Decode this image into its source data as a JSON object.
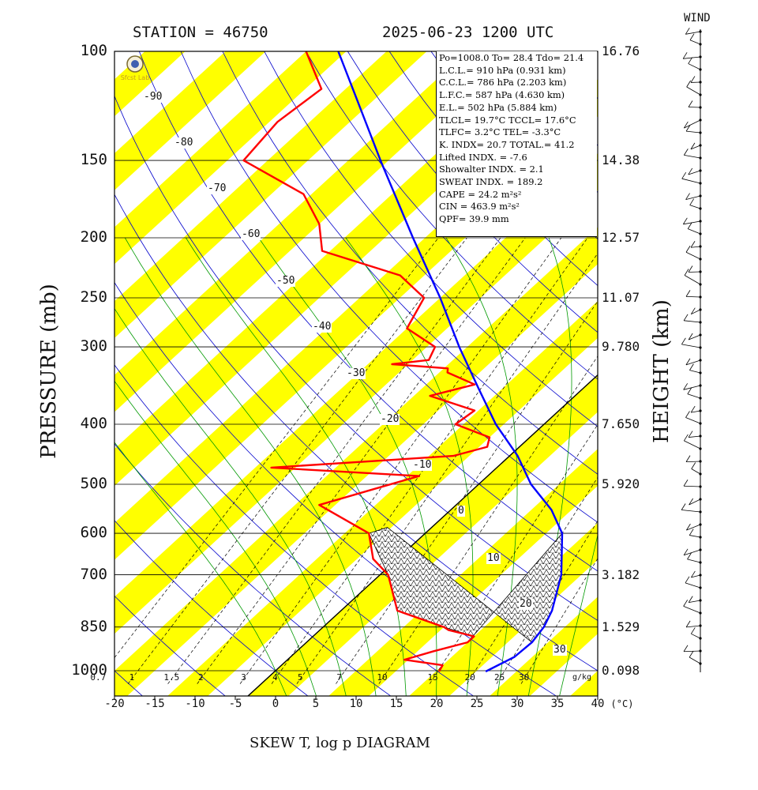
{
  "header": {
    "station": "STATION = 46750",
    "datetime": "2025-06-23 1200 UTC",
    "wind_label": "WIND",
    "footer": "SKEW T, log p DIAGRAM",
    "ylabel": "PRESSURE (mb)",
    "y2label": "HEIGHT (km)",
    "x_unit": "(°C)",
    "mix_unit": "g/kg"
  },
  "info": {
    "lines": [
      "Po=1008.0 To= 28.4 Tdo= 21.4",
      "L.C.L.= 910 hPa (0.931 km)",
      "C.C.L.= 786 hPa (2.203 km)",
      "L.F.C.= 587 hPa (4.630 km)",
      "E.L.= 502 hPa (5.884 km)",
      "TLCL= 19.7°C TCCL= 17.6°C",
      "TLFC= 3.2°C TEL= -3.3°C",
      "K. INDX= 20.7 TOTAL.= 41.2",
      "Lifted INDX. = -7.6",
      "Showalter INDX. = 2.1",
      "SWEAT INDX. = 189.2",
      "CAPE = 24.2 m²s²",
      "CIN = 463.9 m²s²",
      "QPF= 39.9 mm"
    ]
  },
  "chart_data": {
    "type": "line",
    "title": "SKEW T, log p DIAGRAM",
    "xlabel": "(°C)",
    "ylabel": "PRESSURE (mb)",
    "y2label": "HEIGHT (km)",
    "x_ticks": [
      -20,
      -15,
      -10,
      -5,
      0,
      5,
      10,
      15,
      20,
      25,
      30,
      35,
      40
    ],
    "pressure_ticks": [
      100,
      150,
      200,
      250,
      300,
      400,
      500,
      600,
      700,
      850,
      1000
    ],
    "height_ticks": [
      {
        "p": 100,
        "label": "16.76"
      },
      {
        "p": 150,
        "label": "14.38"
      },
      {
        "p": 200,
        "label": "12.57"
      },
      {
        "p": 250,
        "label": "11.07"
      },
      {
        "p": 300,
        "label": "9.780"
      },
      {
        "p": 400,
        "label": "7.650"
      },
      {
        "p": 500,
        "label": "5.920"
      },
      {
        "p": 700,
        "label": "3.182"
      },
      {
        "p": 850,
        "label": "1.529"
      },
      {
        "p": 1000,
        "label": "0.098"
      }
    ],
    "isotherm_labels": [
      "-90",
      "-80",
      "-70",
      "-60",
      "-50",
      "-40",
      "-30",
      "-20",
      "-10",
      "0",
      "10",
      "20",
      "30"
    ],
    "mixing_ratio_labels": [
      "0.7",
      "1",
      "1.5",
      "2",
      "3",
      "4",
      "5",
      "7",
      "10",
      "15",
      "20",
      "25",
      "30"
    ],
    "colors": {
      "temperature": "#ff0000",
      "dewpoint_path": "#0000ff",
      "isotherm_band": "#ffff00",
      "dry_adiabat": "#0000cc",
      "moist_adiabat": "#009900"
    },
    "series": [
      {
        "name": "parcel",
        "points": [
          [
            1003,
            26.2
          ],
          [
            950,
            27.8
          ],
          [
            900,
            28.0
          ],
          [
            850,
            27.4
          ],
          [
            800,
            26.2
          ],
          [
            700,
            22.5
          ],
          [
            600,
            17.0
          ],
          [
            550,
            12.5
          ],
          [
            500,
            6.5
          ],
          [
            450,
            1.0
          ],
          [
            400,
            -6.0
          ],
          [
            350,
            -13.0
          ],
          [
            300,
            -21.0
          ],
          [
            250,
            -30.0
          ],
          [
            200,
            -41.5
          ],
          [
            150,
            -56.0
          ],
          [
            120,
            -67.0
          ],
          [
            100,
            -76.0
          ]
        ]
      },
      {
        "name": "sounding",
        "points": [
          [
            1003,
            20.4
          ],
          [
            980,
            20.0
          ],
          [
            960,
            14.5
          ],
          [
            930,
            17.0
          ],
          [
            900,
            20.0
          ],
          [
            880,
            20.0
          ],
          [
            860,
            16.0
          ],
          [
            850,
            15.0
          ],
          [
            800,
            7.0
          ],
          [
            700,
            1.0
          ],
          [
            660,
            -3.0
          ],
          [
            600,
            -7.0
          ],
          [
            540,
            -17.0
          ],
          [
            510,
            -12.5
          ],
          [
            485,
            -8.5
          ],
          [
            470,
            -28.0
          ],
          [
            450,
            -7.0
          ],
          [
            435,
            -4.0
          ],
          [
            420,
            -5.0
          ],
          [
            400,
            -11.0
          ],
          [
            380,
            -10.5
          ],
          [
            360,
            -18.0
          ],
          [
            345,
            -14.0
          ],
          [
            330,
            -19.0
          ],
          [
            325,
            -19.5
          ],
          [
            320,
            -27.0
          ],
          [
            315,
            -23.0
          ],
          [
            300,
            -24.0
          ],
          [
            280,
            -30.0
          ],
          [
            250,
            -32.0
          ],
          [
            230,
            -38.0
          ],
          [
            210,
            -51.0
          ],
          [
            190,
            -55.0
          ],
          [
            170,
            -61.0
          ],
          [
            150,
            -73.0
          ],
          [
            130,
            -74.0
          ],
          [
            115,
            -73.0
          ],
          [
            100,
            -80.0
          ]
        ]
      }
    ]
  }
}
